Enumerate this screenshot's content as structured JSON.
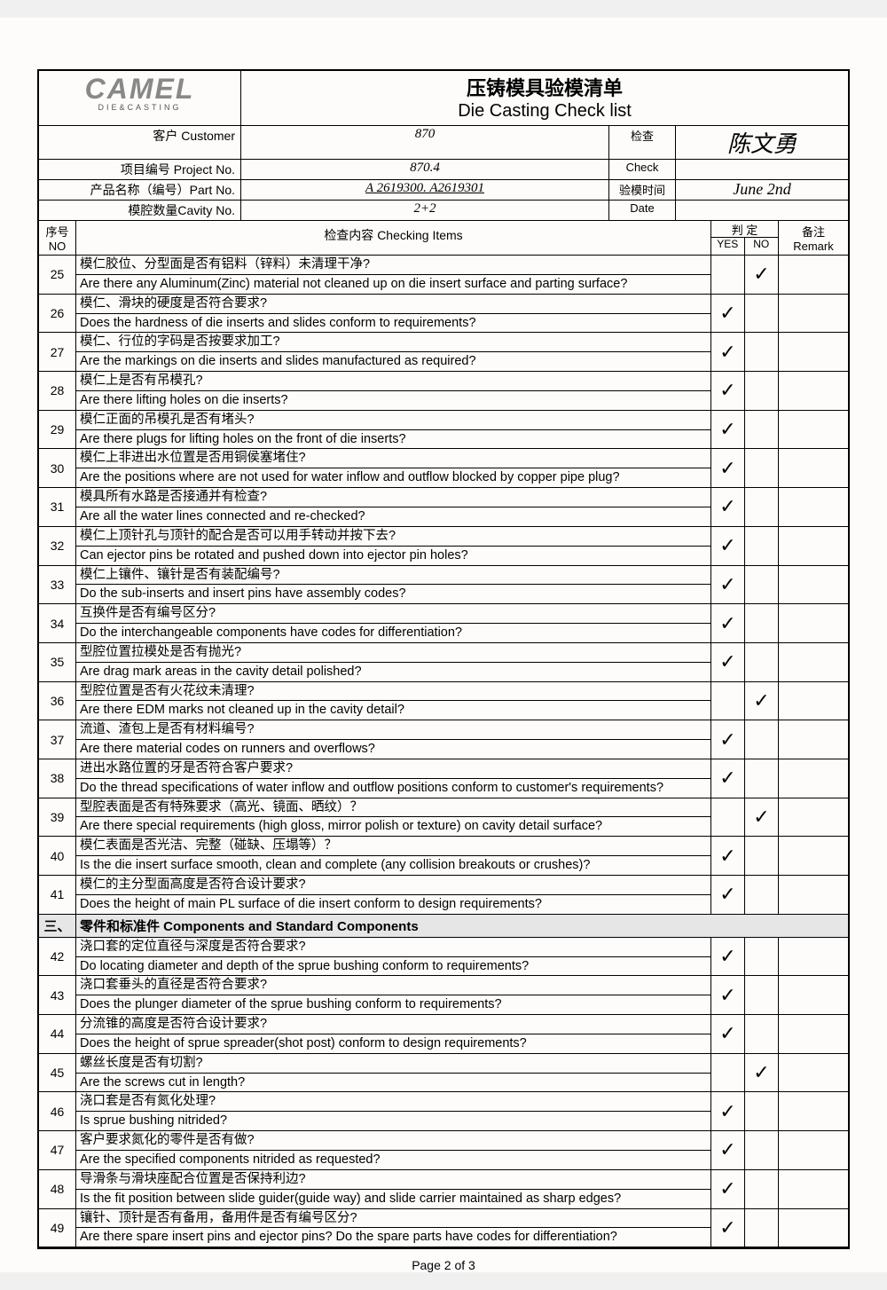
{
  "logo": {
    "brand": "CAMEL",
    "sub": "DIE&CASTING"
  },
  "title": {
    "cn": "压铸模具验模清单",
    "en": "Die Casting Check list"
  },
  "info": {
    "customer_label": "客户 Customer",
    "customer_value": "870",
    "project_label": "项目编号 Project No.",
    "project_value": "870.4",
    "part_label": "产品名称（编号）Part No.",
    "part_value": "A 2619300.  A2619301",
    "cavity_label": "模腔数量Cavity No.",
    "cavity_value": "2+2",
    "check_label1": "检查",
    "check_label2": "Check",
    "date_label1": "验模时间",
    "date_label2": "Date",
    "signature": "陈文勇",
    "date_value": "June  2nd"
  },
  "headers": {
    "no_cn": "序号",
    "no_en": "NO",
    "item": "检查内容 Checking Items",
    "judge": "判    定",
    "yes": "YES",
    "no": "NO",
    "remark_cn": "备注",
    "remark_en": "Remark"
  },
  "section": {
    "no": "三、",
    "title": "零件和标准件 Components and Standard Components"
  },
  "items": [
    {
      "no": "25",
      "cn": "模仁胶位、分型面是否有铝料（锌料）未清理干净?",
      "en": "Are there any Aluminum(Zinc) material not cleaned up on die insert surface and parting surface?",
      "yes": "",
      "noc": "✓"
    },
    {
      "no": "26",
      "cn": "模仁、滑块的硬度是否符合要求?",
      "en": "Does the hardness of die inserts and slides conform to requirements?",
      "yes": "✓",
      "noc": ""
    },
    {
      "no": "27",
      "cn": "模仁、行位的字码是否按要求加工?",
      "en": "Are the markings on die inserts and slides manufactured as required?",
      "yes": "✓",
      "noc": ""
    },
    {
      "no": "28",
      "cn": "模仁上是否有吊模孔?",
      "en": "Are there lifting holes on die inserts?",
      "yes": "✓",
      "noc": ""
    },
    {
      "no": "29",
      "cn": "模仁正面的吊模孔是否有堵头?",
      "en": "Are there plugs for lifting holes on the front of die inserts?",
      "yes": "✓",
      "noc": ""
    },
    {
      "no": "30",
      "cn": "模仁上非进出水位置是否用铜侯塞堵住?",
      "en": "Are the positions where are not used for water inflow and outflow blocked by copper pipe plug?",
      "yes": "✓",
      "noc": ""
    },
    {
      "no": "31",
      "cn": "模具所有水路是否接通并有检查?",
      "en": "Are all the water lines connected and re-checked?",
      "yes": "✓",
      "noc": ""
    },
    {
      "no": "32",
      "cn": "模仁上顶针孔与顶针的配合是否可以用手转动并按下去?",
      "en": "Can ejector pins be rotated and pushed down into ejector pin holes?",
      "yes": "✓",
      "noc": ""
    },
    {
      "no": "33",
      "cn": "模仁上镶件、镶针是否有装配编号?",
      "en": "Do the sub-inserts and insert pins  have assembly codes?",
      "yes": "✓",
      "noc": ""
    },
    {
      "no": "34",
      "cn": "互换件是否有编号区分?",
      "en": "Do the interchangeable components have codes for differentiation?",
      "yes": "✓",
      "noc": ""
    },
    {
      "no": "35",
      "cn": "型腔位置拉模处是否有抛光?",
      "en": "Are drag mark areas in the cavity detail polished?",
      "yes": "✓",
      "noc": ""
    },
    {
      "no": "36",
      "cn": "型腔位置是否有火花纹未清理?",
      "en": "Are there EDM marks not cleaned up in the cavity detail?",
      "yes": "",
      "noc": "✓"
    },
    {
      "no": "37",
      "cn": "流道、渣包上是否有材料编号?",
      "en": "Are there material codes on runners and overflows?",
      "yes": "✓",
      "noc": ""
    },
    {
      "no": "38",
      "cn": "进出水路位置的牙是否符合客户要求?",
      "en": "Do the thread specifications of water inflow and outflow positions conform to customer's requirements?",
      "yes": "✓",
      "noc": ""
    },
    {
      "no": "39",
      "cn": "型腔表面是否有特殊要求（高光、镜面、晒纹）？",
      "en": "Are there special requirements (high gloss, mirror polish or texture) on cavity detail surface?",
      "yes": "",
      "noc": "✓"
    },
    {
      "no": "40",
      "cn": "模仁表面是否光洁、完整（碰缺、压塌等）？",
      "en": "Is the die insert surface smooth, clean and complete (any collision breakouts or crushes)?",
      "yes": "✓",
      "noc": ""
    },
    {
      "no": "41",
      "cn": "模仁的主分型面高度是否符合设计要求?",
      "en": "Does the height of main PL surface of die insert conform to design requirements?",
      "yes": "✓",
      "noc": ""
    }
  ],
  "items2": [
    {
      "no": "42",
      "cn": "浇口套的定位直径与深度是否符合要求?",
      "en": "Do locating diameter and depth of the sprue bushing conform to requirements?",
      "yes": "✓",
      "noc": ""
    },
    {
      "no": "43",
      "cn": "浇口套垂头的直径是否符合要求?",
      "en": "Does the plunger diameter of the sprue bushing conform to requirements?",
      "yes": "✓",
      "noc": ""
    },
    {
      "no": "44",
      "cn": "分流锥的高度是否符合设计要求?",
      "en": "Does the height of sprue spreader(shot post) conform to design requirements?",
      "yes": "✓",
      "noc": ""
    },
    {
      "no": "45",
      "cn": "螺丝长度是否有切割?",
      "en": "Are the screws cut in length?",
      "yes": "",
      "noc": "✓"
    },
    {
      "no": "46",
      "cn": "浇口套是否有氮化处理?",
      "en": "Is sprue bushing nitrided?",
      "yes": "✓",
      "noc": ""
    },
    {
      "no": "47",
      "cn": "客户要求氮化的零件是否有做?",
      "en": "Are the specified components nitrided as requested?",
      "yes": "✓",
      "noc": ""
    },
    {
      "no": "48",
      "cn": "导滑条与滑块座配合位置是否保持利边?",
      "en": "Is the fit position between slide guider(guide way) and slide carrier maintained as sharp edges?",
      "yes": "✓",
      "noc": ""
    },
    {
      "no": "49",
      "cn": "镶针、顶针是否有备用，备用件是否有编号区分?",
      "en": "Are there spare insert pins and ejector pins? Do the spare parts have codes for differentiation?",
      "yes": "✓",
      "noc": ""
    }
  ],
  "colors": {
    "bg": "#fdfcfa",
    "section_bg": "#e6e6e6",
    "border": "#000000",
    "logo": "#888888"
  },
  "page_number": "Page 2 of 3"
}
